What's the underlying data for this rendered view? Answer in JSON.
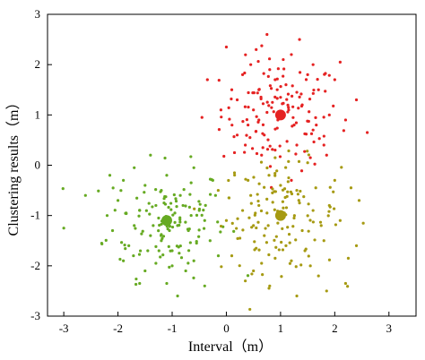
{
  "chart_data": {
    "type": "scatter",
    "title": "",
    "xlabel": "Interval（m）",
    "ylabel": "Clustering results（m）",
    "xlim": [
      -3.3,
      3.5
    ],
    "ylim": [
      -3,
      3
    ],
    "xticks": [
      -3,
      -2,
      -1,
      0,
      1,
      2,
      3
    ],
    "yticks": [
      -3,
      -2,
      -1,
      0,
      1,
      2,
      3
    ],
    "grid": false,
    "legend": "none",
    "clusters": [
      {
        "color": "#e52222",
        "center": [
          1.0,
          1.0
        ],
        "spread": 0.55,
        "points": [
          [
            1.0,
            1.0
          ],
          [
            0.0,
            2.35
          ],
          [
            0.55,
            2.3
          ],
          [
            0.75,
            2.6
          ],
          [
            1.35,
            2.5
          ],
          [
            2.1,
            2.05
          ],
          [
            2.4,
            1.3
          ],
          [
            2.6,
            0.65
          ],
          [
            -0.35,
            1.7
          ],
          [
            -0.45,
            0.95
          ],
          [
            0.15,
            0.25
          ],
          [
            1.2,
            -0.3
          ],
          [
            0.2,
            1.3
          ],
          [
            0.4,
            0.8
          ],
          [
            0.6,
            1.5
          ],
          [
            0.8,
            1.9
          ],
          [
            1.1,
            1.6
          ],
          [
            1.4,
            1.2
          ],
          [
            1.6,
            0.7
          ],
          [
            1.3,
            0.4
          ],
          [
            0.9,
            0.3
          ],
          [
            0.7,
            0.6
          ],
          [
            0.5,
            1.1
          ],
          [
            1.7,
            1.5
          ],
          [
            1.9,
            1.0
          ],
          [
            1.5,
            1.8
          ],
          [
            0.3,
            1.8
          ],
          [
            0.2,
            0.6
          ],
          [
            1.05,
            2.1
          ],
          [
            1.8,
            0.4
          ],
          [
            0.95,
            0.9
          ],
          [
            1.15,
            1.1
          ],
          [
            0.85,
            1.25
          ],
          [
            1.25,
            0.8
          ],
          [
            1.0,
            1.35
          ],
          [
            0.75,
            1.05
          ],
          [
            1.3,
            1.45
          ],
          [
            0.65,
            0.2
          ],
          [
            1.55,
            0.15
          ],
          [
            2.0,
            1.7
          ],
          [
            0.1,
            1.5
          ],
          [
            -0.1,
            1.1
          ],
          [
            0.45,
            2.0
          ],
          [
            1.2,
            2.2
          ],
          [
            1.6,
            2.0
          ],
          [
            2.2,
            0.9
          ],
          [
            0.35,
            0.4
          ],
          [
            1.85,
            0.2
          ],
          [
            0.9,
            1.7
          ],
          [
            0.6,
            0.9
          ]
        ]
      },
      {
        "color": "#66aa22",
        "center": [
          -1.1,
          -1.1
        ],
        "spread": 0.55,
        "points": [
          [
            -1.1,
            -1.1
          ],
          [
            -3.0,
            -1.25
          ],
          [
            -2.6,
            -0.6
          ],
          [
            -2.2,
            -1.0
          ],
          [
            -1.9,
            -1.9
          ],
          [
            -1.5,
            -2.1
          ],
          [
            -1.1,
            -2.35
          ],
          [
            -0.9,
            -2.6
          ],
          [
            -0.4,
            -2.4
          ],
          [
            -0.3,
            -1.5
          ],
          [
            -0.2,
            -0.6
          ],
          [
            -0.6,
            -0.05
          ],
          [
            -1.4,
            0.2
          ],
          [
            -1.9,
            -0.3
          ],
          [
            -1.6,
            -0.9
          ],
          [
            -1.2,
            -0.5
          ],
          [
            -0.8,
            -0.8
          ],
          [
            -0.7,
            -1.3
          ],
          [
            -1.0,
            -1.7
          ],
          [
            -1.4,
            -1.4
          ],
          [
            -1.7,
            -1.2
          ],
          [
            -1.3,
            -0.8
          ],
          [
            -0.9,
            -1.2
          ],
          [
            -1.2,
            -1.5
          ],
          [
            -0.5,
            -0.9
          ],
          [
            -2.0,
            -0.7
          ],
          [
            -1.8,
            -1.6
          ],
          [
            -0.6,
            -1.9
          ],
          [
            -1.1,
            -0.2
          ],
          [
            -1.5,
            -0.4
          ],
          [
            -0.95,
            -0.95
          ],
          [
            -1.25,
            -1.05
          ],
          [
            -1.05,
            -1.3
          ],
          [
            -0.85,
            -0.6
          ],
          [
            -1.45,
            -1.7
          ],
          [
            -2.1,
            -1.3
          ],
          [
            -0.4,
            -1.1
          ],
          [
            -1.7,
            -0.05
          ],
          [
            -1.3,
            -1.95
          ],
          [
            -0.75,
            -2.1
          ],
          [
            -2.3,
            -1.55
          ],
          [
            -0.25,
            -0.3
          ],
          [
            -1.15,
            -0.75
          ],
          [
            -1.6,
            -2.35
          ],
          [
            -0.55,
            -1.55
          ],
          [
            -1.85,
            -0.95
          ],
          [
            -1.0,
            -2.0
          ],
          [
            -0.65,
            -0.35
          ],
          [
            -2.15,
            -0.2
          ],
          [
            -1.35,
            -1.2
          ]
        ]
      },
      {
        "color": "#a69a12",
        "center": [
          1.0,
          -1.0
        ],
        "spread": 0.55,
        "points": [
          [
            1.0,
            -1.0
          ],
          [
            -0.15,
            -0.5
          ],
          [
            0.0,
            -1.1
          ],
          [
            0.1,
            -1.8
          ],
          [
            0.5,
            -2.1
          ],
          [
            0.8,
            -2.4
          ],
          [
            1.3,
            -2.6
          ],
          [
            1.7,
            -2.2
          ],
          [
            2.2,
            -2.35
          ],
          [
            2.4,
            -1.6
          ],
          [
            2.45,
            -0.7
          ],
          [
            2.0,
            -0.3
          ],
          [
            1.5,
            0.05
          ],
          [
            0.9,
            0.15
          ],
          [
            0.4,
            -0.3
          ],
          [
            0.6,
            -0.8
          ],
          [
            0.7,
            -1.4
          ],
          [
            1.1,
            -1.6
          ],
          [
            1.4,
            -1.3
          ],
          [
            1.6,
            -0.9
          ],
          [
            1.3,
            -0.5
          ],
          [
            0.85,
            -0.55
          ],
          [
            0.5,
            -1.2
          ],
          [
            1.2,
            -1.9
          ],
          [
            1.8,
            -1.5
          ],
          [
            1.9,
            -0.8
          ],
          [
            0.3,
            -0.9
          ],
          [
            0.95,
            -1.15
          ],
          [
            1.05,
            -0.85
          ],
          [
            1.25,
            -1.05
          ],
          [
            0.75,
            -0.95
          ],
          [
            1.45,
            -1.7
          ],
          [
            0.55,
            -1.65
          ],
          [
            1.65,
            -0.45
          ],
          [
            2.1,
            -1.1
          ],
          [
            0.25,
            -1.45
          ],
          [
            0.15,
            -0.15
          ],
          [
            1.15,
            -0.25
          ],
          [
            0.65,
            -1.95
          ],
          [
            1.55,
            -2.0
          ],
          [
            1.75,
            -1.2
          ],
          [
            0.45,
            -0.6
          ],
          [
            1.35,
            -0.75
          ],
          [
            2.25,
            -1.85
          ],
          [
            0.9,
            -1.85
          ],
          [
            1.0,
            -0.4
          ],
          [
            0.35,
            -2.3
          ],
          [
            1.85,
            -2.5
          ],
          [
            2.3,
            -0.45
          ],
          [
            0.05,
            -0.65
          ]
        ]
      }
    ]
  }
}
